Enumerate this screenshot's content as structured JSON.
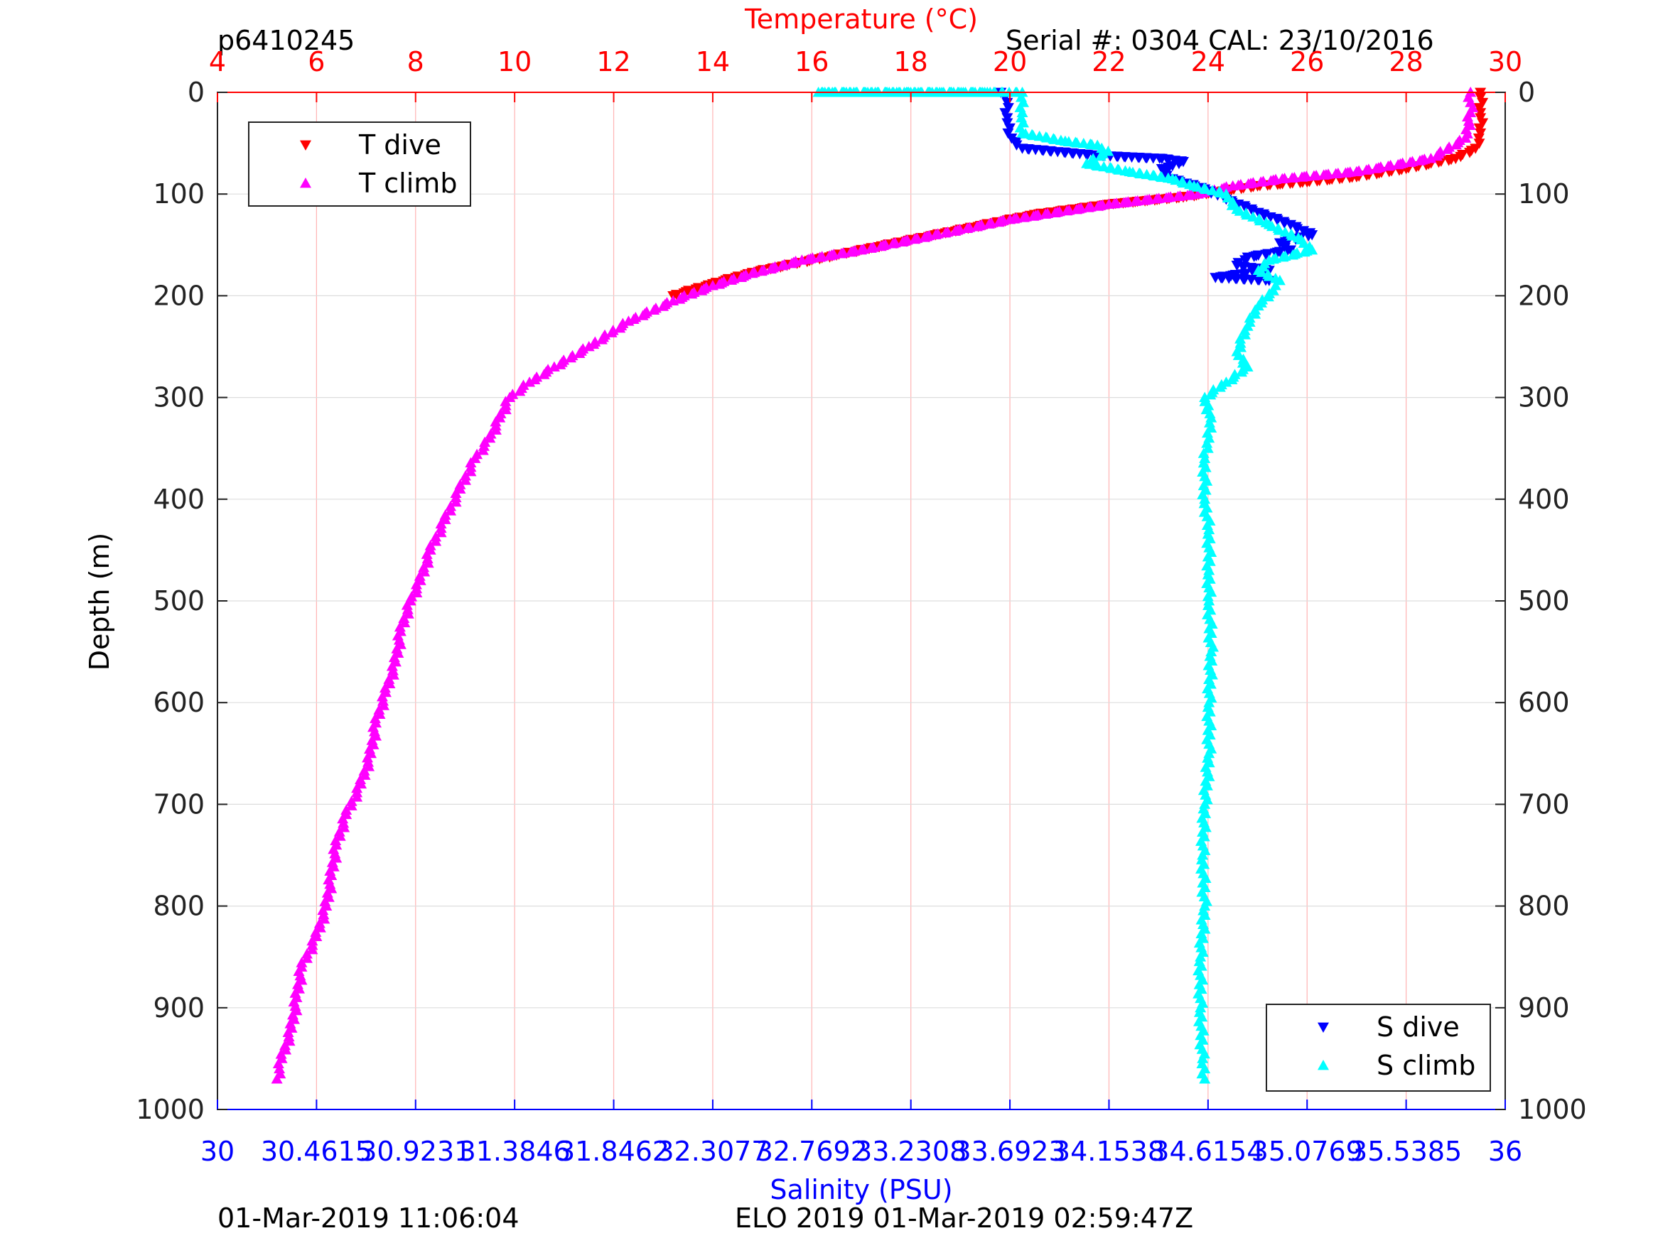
{
  "header": {
    "left": "p6410245",
    "right": "Serial #: 0304  CAL: 23/10/2016"
  },
  "footer": {
    "left": "01-Mar-2019 11:06:04",
    "right": "ELO 2019 01-Mar-2019 02:59:47Z"
  },
  "chart_data": {
    "type": "scatter",
    "ylabel": "Depth (m)",
    "ylim": [
      0,
      1000
    ],
    "y_reversed": true,
    "y_ticks": [
      "0",
      "100",
      "200",
      "300",
      "400",
      "500",
      "600",
      "700",
      "800",
      "900",
      "1000"
    ],
    "top_axis": {
      "label": "Temperature (°C)",
      "range": [
        4,
        30
      ],
      "ticks": [
        "4",
        "6",
        "8",
        "10",
        "12",
        "14",
        "16",
        "18",
        "20",
        "22",
        "24",
        "26",
        "28",
        "30"
      ],
      "color": "#ff0000"
    },
    "bottom_axis": {
      "label": "Salinity (PSU)",
      "range": [
        30,
        36
      ],
      "ticks": [
        "30",
        "30.4615",
        "30.9231",
        "31.3846",
        "31.8462",
        "32.3077",
        "32.7692",
        "33.2308",
        "33.6923",
        "34.1538",
        "34.6154",
        "35.0769",
        "35.5385",
        "36"
      ],
      "color": "#0000ff"
    },
    "grid": true,
    "grid_color": "#ffb3b3",
    "legends": [
      {
        "placement": "top-left",
        "entries": [
          {
            "label": "T dive",
            "color": "#ff0000",
            "marker": "triangle-down"
          },
          {
            "label": "T climb",
            "color": "#ff00ff",
            "marker": "triangle-up"
          }
        ]
      },
      {
        "placement": "bottom-right",
        "entries": [
          {
            "label": "S dive",
            "color": "#0000ff",
            "marker": "triangle-down"
          },
          {
            "label": "S climb",
            "color": "#00ffff",
            "marker": "triangle-up"
          }
        ]
      }
    ],
    "series": [
      {
        "name": "T dive",
        "axis": "temperature",
        "color": "#ff0000",
        "marker": "triangle-down",
        "points": [
          [
            29.5,
            0
          ],
          [
            29.5,
            20
          ],
          [
            29.5,
            40
          ],
          [
            29.4,
            55
          ],
          [
            29.0,
            65
          ],
          [
            28.0,
            75
          ],
          [
            27.0,
            83
          ],
          [
            26.0,
            88
          ],
          [
            25.0,
            92
          ],
          [
            24.3,
            97
          ],
          [
            23.5,
            103
          ],
          [
            22.0,
            110
          ],
          [
            20.5,
            120
          ],
          [
            19.5,
            130
          ],
          [
            18.5,
            140
          ],
          [
            17.5,
            150
          ],
          [
            16.5,
            160
          ],
          [
            15.5,
            170
          ],
          [
            14.8,
            177
          ],
          [
            14.0,
            188
          ],
          [
            13.2,
            200
          ]
        ]
      },
      {
        "name": "T climb",
        "axis": "temperature",
        "color": "#ff00ff",
        "marker": "triangle-up",
        "points": [
          [
            29.3,
            0
          ],
          [
            29.3,
            20
          ],
          [
            29.2,
            45
          ],
          [
            28.5,
            65
          ],
          [
            27.0,
            78
          ],
          [
            25.5,
            85
          ],
          [
            24.5,
            92
          ],
          [
            23.8,
            100
          ],
          [
            22.0,
            110
          ],
          [
            20.0,
            125
          ],
          [
            18.5,
            140
          ],
          [
            17.0,
            155
          ],
          [
            15.8,
            165
          ],
          [
            14.8,
            178
          ],
          [
            14.0,
            190
          ],
          [
            13.2,
            205
          ],
          [
            12.3,
            225
          ],
          [
            11.5,
            250
          ],
          [
            10.8,
            270
          ],
          [
            10.3,
            285
          ],
          [
            9.9,
            300
          ],
          [
            9.7,
            320
          ],
          [
            9.5,
            340
          ],
          [
            9.2,
            360
          ],
          [
            8.9,
            390
          ],
          [
            8.6,
            420
          ],
          [
            8.3,
            450
          ],
          [
            8.1,
            480
          ],
          [
            7.9,
            500
          ],
          [
            7.7,
            530
          ],
          [
            7.6,
            560
          ],
          [
            7.4,
            590
          ],
          [
            7.2,
            620
          ],
          [
            7.1,
            650
          ],
          [
            6.9,
            680
          ],
          [
            6.6,
            710
          ],
          [
            6.4,
            740
          ],
          [
            6.3,
            770
          ],
          [
            6.2,
            800
          ],
          [
            6.0,
            830
          ],
          [
            5.7,
            860
          ],
          [
            5.6,
            890
          ],
          [
            5.5,
            920
          ],
          [
            5.3,
            950
          ],
          [
            5.2,
            970
          ]
        ]
      },
      {
        "name": "S dive",
        "axis": "salinity",
        "color": "#0000ff",
        "marker": "triangle-down",
        "points": [
          [
            33.65,
            0
          ],
          [
            33.68,
            10
          ],
          [
            33.68,
            30
          ],
          [
            33.7,
            45
          ],
          [
            33.75,
            55
          ],
          [
            34.1,
            62
          ],
          [
            34.4,
            65
          ],
          [
            34.5,
            68
          ],
          [
            34.45,
            72
          ],
          [
            34.4,
            75
          ],
          [
            34.45,
            85
          ],
          [
            34.6,
            95
          ],
          [
            34.7,
            105
          ],
          [
            34.85,
            118
          ],
          [
            35.0,
            130
          ],
          [
            35.1,
            140
          ],
          [
            34.95,
            148
          ],
          [
            35.0,
            155
          ],
          [
            34.8,
            162
          ],
          [
            34.75,
            170
          ],
          [
            34.9,
            175
          ],
          [
            34.65,
            182
          ],
          [
            34.9,
            185
          ]
        ]
      },
      {
        "name": "S climb",
        "axis": "salinity",
        "color": "#00ffff",
        "marker": "triangle-up",
        "points": [
          [
            33.6,
            0
          ],
          [
            32.8,
            0
          ],
          [
            33.2,
            0
          ],
          [
            33.75,
            0
          ],
          [
            33.75,
            20
          ],
          [
            33.75,
            40
          ],
          [
            33.95,
            48
          ],
          [
            34.1,
            52
          ],
          [
            34.15,
            58
          ],
          [
            34.05,
            70
          ],
          [
            34.25,
            78
          ],
          [
            34.45,
            85
          ],
          [
            34.55,
            92
          ],
          [
            34.7,
            100
          ],
          [
            34.75,
            115
          ],
          [
            34.9,
            130
          ],
          [
            35.05,
            145
          ],
          [
            35.1,
            155
          ],
          [
            34.9,
            165
          ],
          [
            34.85,
            175
          ],
          [
            34.95,
            185
          ],
          [
            34.92,
            195
          ],
          [
            34.85,
            210
          ],
          [
            34.8,
            230
          ],
          [
            34.75,
            255
          ],
          [
            34.8,
            270
          ],
          [
            34.7,
            285
          ],
          [
            34.6,
            300
          ],
          [
            34.63,
            320
          ],
          [
            34.62,
            340
          ],
          [
            34.6,
            360
          ],
          [
            34.6,
            400
          ],
          [
            34.62,
            430
          ],
          [
            34.62,
            470
          ],
          [
            34.62,
            500
          ],
          [
            34.63,
            550
          ],
          [
            34.62,
            600
          ],
          [
            34.62,
            650
          ],
          [
            34.6,
            700
          ],
          [
            34.59,
            750
          ],
          [
            34.6,
            800
          ],
          [
            34.58,
            850
          ],
          [
            34.58,
            900
          ],
          [
            34.59,
            950
          ],
          [
            34.6,
            970
          ]
        ]
      }
    ]
  }
}
